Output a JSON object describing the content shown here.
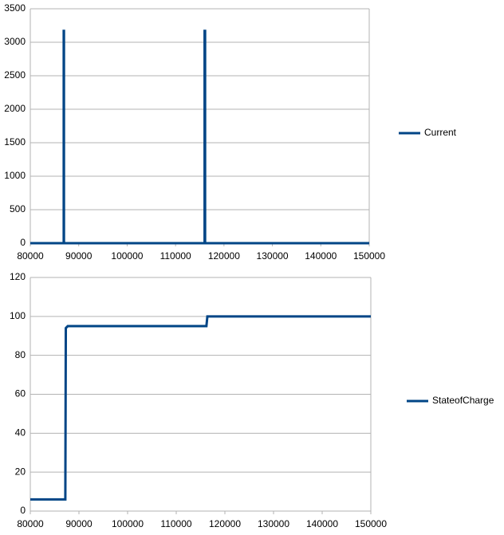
{
  "chart_data": [
    {
      "type": "line",
      "x": [
        80000,
        86900,
        86900,
        86950,
        86950,
        116000,
        116000,
        116100,
        116100,
        150000
      ],
      "series": [
        {
          "name": "Current",
          "color": "#004586",
          "values": [
            0,
            0,
            3170,
            3170,
            0,
            0,
            3170,
            3170,
            0,
            0
          ]
        }
      ],
      "xlim": [
        80000,
        150000
      ],
      "xticks": [
        80000,
        90000,
        100000,
        110000,
        120000,
        130000,
        140000,
        150000
      ],
      "ylim": [
        0,
        3500
      ],
      "yticks": [
        0,
        500,
        1000,
        1500,
        2000,
        2500,
        3000,
        3500
      ],
      "grid": true,
      "legend": "right"
    },
    {
      "type": "line",
      "x": [
        80000,
        87200,
        87300,
        87700,
        116200,
        116400,
        150000
      ],
      "series": [
        {
          "name": "StateofCharge",
          "color": "#004586",
          "values": [
            6,
            6,
            94,
            95,
            95,
            100,
            100
          ]
        }
      ],
      "xlim": [
        80000,
        150000
      ],
      "xticks": [
        80000,
        90000,
        100000,
        110000,
        120000,
        130000,
        140000,
        150000
      ],
      "ylim": [
        0,
        120
      ],
      "yticks": [
        0,
        20,
        40,
        60,
        80,
        100,
        120
      ],
      "grid": true,
      "legend": "right"
    }
  ]
}
